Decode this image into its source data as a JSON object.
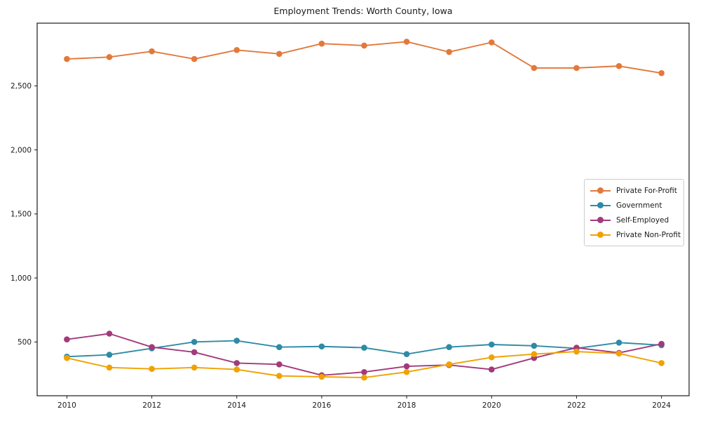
{
  "title": "Employment Trends: Worth County, Iowa",
  "chart_data": {
    "type": "line",
    "title": "Employment Trends: Worth County, Iowa",
    "xlabel": "",
    "ylabel": "",
    "grid": false,
    "legend_position": "center right",
    "xlim": [
      2009.3,
      2024.65
    ],
    "ylim": [
      80,
      2990
    ],
    "xticks": {
      "values": [
        2010,
        2012,
        2014,
        2016,
        2018,
        2020,
        2022,
        2024
      ],
      "labels": [
        "2010",
        "2012",
        "2014",
        "2016",
        "2018",
        "2020",
        "2022",
        "2024"
      ]
    },
    "yticks": {
      "values": [
        500,
        1000,
        1500,
        2000,
        2500
      ],
      "labels": [
        "500",
        "1,000",
        "1,500",
        "2,000",
        "2,500"
      ]
    },
    "x": [
      2010,
      2011,
      2012,
      2013,
      2014,
      2015,
      2016,
      2017,
      2018,
      2019,
      2020,
      2021,
      2022,
      2023,
      2024
    ],
    "series": [
      {
        "name": "Private For-Profit",
        "color": "#E2793C",
        "values": [
          2710,
          2725,
          2770,
          2710,
          2780,
          2750,
          2830,
          2815,
          2845,
          2765,
          2840,
          2640,
          2640,
          2655,
          2600
        ]
      },
      {
        "name": "Government",
        "color": "#2E8BA5",
        "values": [
          385,
          400,
          450,
          500,
          510,
          460,
          465,
          455,
          405,
          460,
          480,
          470,
          450,
          495,
          475
        ]
      },
      {
        "name": "Self-Employed",
        "color": "#A23A7B",
        "values": [
          520,
          565,
          460,
          420,
          335,
          325,
          240,
          265,
          310,
          320,
          285,
          375,
          455,
          415,
          485
        ]
      },
      {
        "name": "Private Non-Profit",
        "color": "#F0A202",
        "values": [
          375,
          300,
          290,
          300,
          285,
          235,
          228,
          222,
          265,
          325,
          380,
          405,
          425,
          410,
          335
        ]
      }
    ]
  }
}
